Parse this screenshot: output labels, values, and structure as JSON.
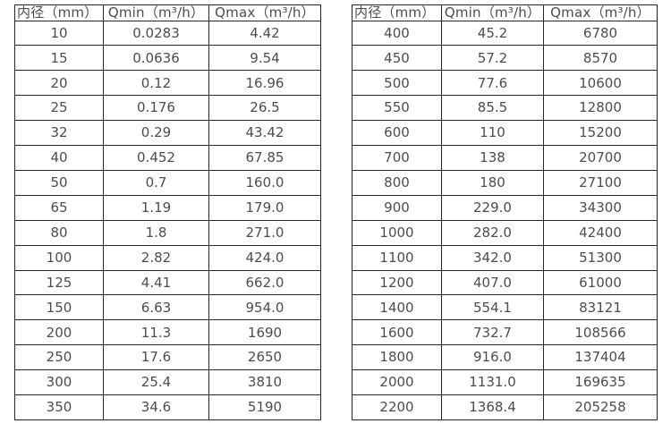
{
  "page": {
    "background": "#ffffff",
    "border_color": "#262626",
    "text_color": "#4d4d4d"
  },
  "tables": [
    {
      "name": "small-diameters",
      "headers": [
        "内径（mm）",
        "Qmin（m³/h）",
        "Qmax（m³/h）"
      ],
      "rows": [
        [
          "10",
          "0.0283",
          "4.42"
        ],
        [
          "15",
          "0.0636",
          "9.54"
        ],
        [
          "20",
          "0.12",
          "16.96"
        ],
        [
          "25",
          "0.176",
          "26.5"
        ],
        [
          "32",
          "0.29",
          "43.42"
        ],
        [
          "40",
          "0.452",
          "67.85"
        ],
        [
          "50",
          "0.7",
          "160.0"
        ],
        [
          "65",
          "1.19",
          "179.0"
        ],
        [
          "80",
          "1.8",
          "271.0"
        ],
        [
          "100",
          "2.82",
          "424.0"
        ],
        [
          "125",
          "4.41",
          "662.0"
        ],
        [
          "150",
          "6.63",
          "954.0"
        ],
        [
          "200",
          "11.3",
          "1690"
        ],
        [
          "250",
          "17.6",
          "2650"
        ],
        [
          "300",
          "25.4",
          "3810"
        ],
        [
          "350",
          "34.6",
          "5190"
        ]
      ]
    },
    {
      "name": "large-diameters",
      "headers": [
        "内径（mm）",
        "Qmin（m³/h）",
        "Qmax（m³/h）"
      ],
      "rows": [
        [
          "400",
          "45.2",
          "6780"
        ],
        [
          "450",
          "57.2",
          "8570"
        ],
        [
          "500",
          "77.6",
          "10600"
        ],
        [
          "550",
          "85.5",
          "12800"
        ],
        [
          "600",
          "110",
          "15200"
        ],
        [
          "700",
          "138",
          "20700"
        ],
        [
          "800",
          "180",
          "27100"
        ],
        [
          "900",
          "229.0",
          "34300"
        ],
        [
          "1000",
          "282.0",
          "42400"
        ],
        [
          "1100",
          "342.0",
          "51300"
        ],
        [
          "1200",
          "407.0",
          "61000"
        ],
        [
          "1400",
          "554.1",
          "83121"
        ],
        [
          "1600",
          "732.7",
          "108566"
        ],
        [
          "1800",
          "916.0",
          "137404"
        ],
        [
          "2000",
          "1131.0",
          "169635"
        ],
        [
          "2200",
          "1368.4",
          "205258"
        ]
      ]
    }
  ]
}
